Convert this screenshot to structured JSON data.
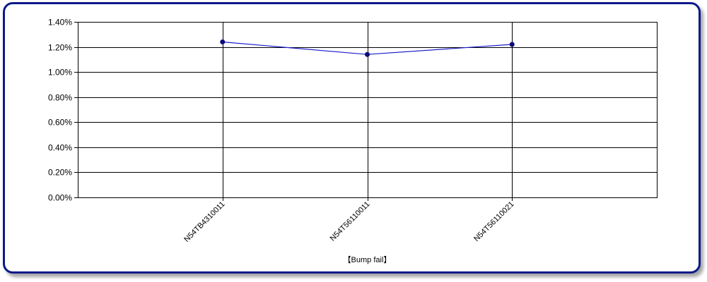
{
  "chart_data": {
    "type": "line",
    "categories": [
      "N54TB4310011",
      "N54T56110011",
      "N54T56110021"
    ],
    "series": [
      {
        "values": [
          1.24,
          1.14,
          1.22
        ]
      }
    ],
    "x_range": [
      0,
      4
    ],
    "ylim": [
      0,
      1.4
    ],
    "y_ticks": [
      0,
      0.2,
      0.4,
      0.6,
      0.8,
      1.0,
      1.2,
      1.4
    ],
    "y_tick_labels": [
      "0.00%",
      "0.20%",
      "0.40%",
      "0.60%",
      "0.80%",
      "1.00%",
      "1.20%",
      "1.40%"
    ],
    "xlabel": "【Bump fail】",
    "ylabel": "",
    "title": "",
    "grid": true,
    "legend": "none",
    "line_color": "#1c1ccc",
    "marker_color": "#0a0a78"
  }
}
